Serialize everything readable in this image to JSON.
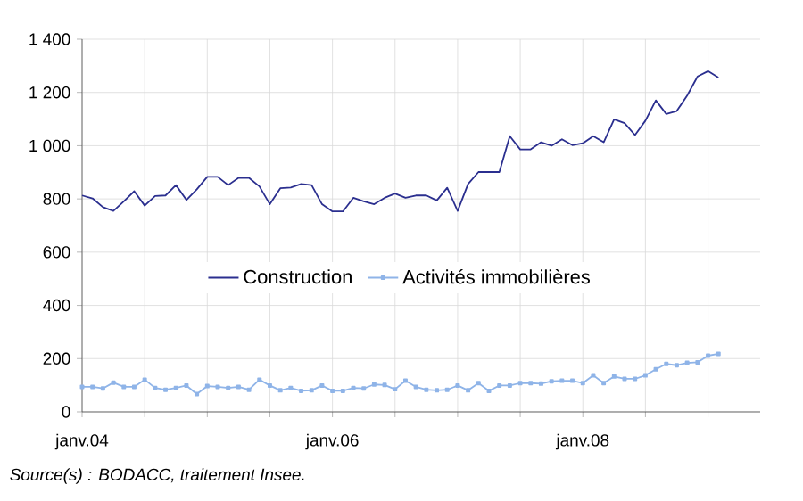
{
  "chart_data": {
    "type": "line",
    "x": [
      "2004-01",
      "2004-02",
      "2004-03",
      "2004-04",
      "2004-05",
      "2004-06",
      "2004-07",
      "2004-08",
      "2004-09",
      "2004-10",
      "2004-11",
      "2004-12",
      "2005-01",
      "2005-02",
      "2005-03",
      "2005-04",
      "2005-05",
      "2005-06",
      "2005-07",
      "2005-08",
      "2005-09",
      "2005-10",
      "2005-11",
      "2005-12",
      "2006-01",
      "2006-02",
      "2006-03",
      "2006-04",
      "2006-05",
      "2006-06",
      "2006-07",
      "2006-08",
      "2006-09",
      "2006-10",
      "2006-11",
      "2006-12",
      "2007-01",
      "2007-02",
      "2007-03",
      "2007-04",
      "2007-05",
      "2007-06",
      "2007-07",
      "2007-08",
      "2007-09",
      "2007-10",
      "2007-11",
      "2007-12",
      "2008-01",
      "2008-02",
      "2008-03",
      "2008-04",
      "2008-05",
      "2008-06",
      "2008-07",
      "2008-08",
      "2008-09",
      "2008-10",
      "2008-11",
      "2008-12",
      "2009-01",
      "2009-02"
    ],
    "series": [
      {
        "name": "Construction",
        "color": "#2b2f8f",
        "marker": "none",
        "values": [
          813,
          802,
          769,
          755,
          791,
          829,
          775,
          811,
          813,
          852,
          796,
          836,
          883,
          883,
          852,
          879,
          879,
          847,
          780,
          840,
          843,
          856,
          852,
          780,
          753,
          753,
          804,
          791,
          780,
          804,
          820,
          804,
          813,
          813,
          794,
          842,
          755,
          856,
          901,
          901,
          901,
          1036,
          986,
          986,
          1013,
          1000,
          1024,
          1002,
          1009,
          1036,
          1013,
          1099,
          1085,
          1040,
          1094,
          1170,
          1119,
          1130,
          1188,
          1260,
          1280,
          1256
        ]
      },
      {
        "name": "Activités immobilières",
        "color": "#8fb4e8",
        "marker": "square",
        "values": [
          94,
          94,
          88,
          110,
          94,
          94,
          121,
          90,
          83,
          90,
          99,
          67,
          97,
          94,
          90,
          94,
          83,
          121,
          99,
          81,
          90,
          79,
          81,
          99,
          79,
          79,
          90,
          88,
          103,
          101,
          85,
          117,
          94,
          83,
          81,
          83,
          99,
          81,
          108,
          79,
          99,
          99,
          108,
          108,
          106,
          115,
          117,
          117,
          108,
          137,
          108,
          133,
          124,
          124,
          137,
          160,
          180,
          175,
          184,
          186,
          211,
          218
        ]
      }
    ],
    "xlim": [
      "2004-01",
      "2009-06"
    ],
    "xticks": [
      {
        "value": "2004-01",
        "label": "janv.04"
      },
      {
        "value": "2004-07",
        "label": null
      },
      {
        "value": "2005-01",
        "label": null
      },
      {
        "value": "2005-07",
        "label": null
      },
      {
        "value": "2006-01",
        "label": "janv.06"
      },
      {
        "value": "2006-07",
        "label": null
      },
      {
        "value": "2007-01",
        "label": null
      },
      {
        "value": "2007-07",
        "label": null
      },
      {
        "value": "2008-01",
        "label": "janv.08"
      },
      {
        "value": "2008-07",
        "label": null
      },
      {
        "value": "2009-01",
        "label": null
      }
    ],
    "ylim": [
      0,
      1400
    ],
    "yticks": [
      0,
      200,
      400,
      600,
      800,
      {
        "value": 1000,
        "label": "1 000"
      },
      {
        "value": 1200,
        "label": "1 200"
      },
      {
        "value": 1400,
        "label": "1 400"
      }
    ],
    "grid": true,
    "legend": "center",
    "line_style": "solid",
    "annotations": [
      "Source(s) :  BODACC, traitement Insee."
    ]
  }
}
